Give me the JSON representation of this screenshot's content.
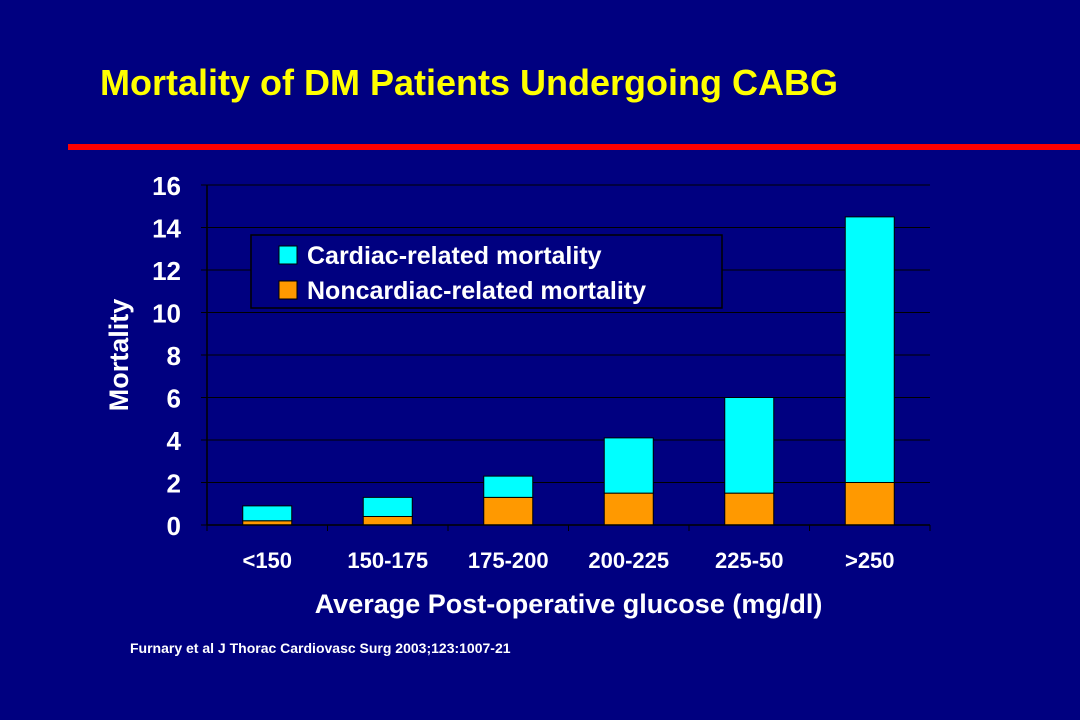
{
  "slide": {
    "title": "Mortality of DM Patients Undergoing CABG",
    "citation": "Furnary et al J Thorac Cardiovasc Surg 2003;123:1007-21"
  },
  "colors": {
    "background": "#000080",
    "title": "#FFFF00",
    "rule": "#FF0000",
    "cardiac": "#00FFFF",
    "noncardiac": "#FF9900",
    "text": "#FFFFFF"
  },
  "chart_data": {
    "type": "bar",
    "stacked": true,
    "categories": [
      "<150",
      "150-175",
      "175-200",
      "200-225",
      "225-50",
      ">250"
    ],
    "series": [
      {
        "name": "Noncardiac-related mortality",
        "values": [
          0.2,
          0.4,
          1.3,
          1.5,
          1.5,
          2.0
        ]
      },
      {
        "name": "Cardiac-related mortality",
        "values": [
          0.7,
          0.9,
          1.0,
          2.6,
          4.5,
          12.5
        ]
      }
    ],
    "xlabel": "Average Post-operative glucose (mg/dl)",
    "ylabel": "Mortality",
    "ylim": [
      0,
      16
    ],
    "yticks": [
      0,
      2,
      4,
      6,
      8,
      10,
      12,
      14,
      16
    ],
    "grid": true,
    "legend": "top-left",
    "legend_entries": [
      "Cardiac-related mortality",
      "Noncardiac-related mortality"
    ]
  }
}
